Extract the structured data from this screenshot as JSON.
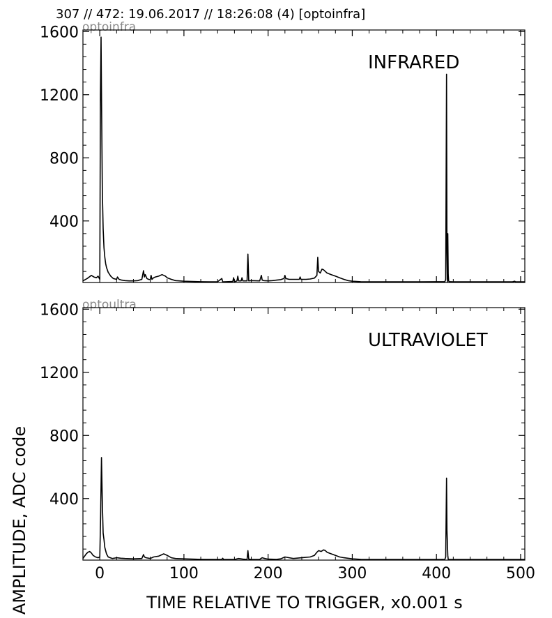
{
  "header": {
    "title": "307 // 472:   19.06.2017 // 18:26:08 (4)  [optoinfra]"
  },
  "chart_data": [
    {
      "type": "line",
      "channel_label": "optoinfra",
      "panel_label": "INFRARED",
      "xlim": [
        -20,
        505
      ],
      "ylim": [
        10,
        1610
      ],
      "yticks": [
        400,
        800,
        1200,
        1600
      ],
      "ytick_labels": [
        "400",
        "800",
        "1200",
        "1600"
      ],
      "show_xtick_labels": false,
      "series": [
        {
          "x": [
            -20,
            -15,
            -10,
            -7,
            -4,
            -2,
            0,
            0.8,
            1.5,
            2.2,
            3,
            4,
            5,
            6,
            7,
            8,
            10,
            13,
            16,
            20,
            21,
            23,
            26,
            30,
            35,
            40,
            45,
            50,
            52,
            53,
            54,
            56,
            58,
            60,
            61,
            62,
            64,
            66,
            70,
            74,
            76,
            78,
            80,
            85,
            90,
            100,
            110,
            120,
            130,
            140,
            145,
            146,
            147,
            150,
            158,
            159,
            160,
            163,
            164,
            165,
            168,
            169,
            170,
            175,
            176,
            177,
            180,
            190,
            192,
            193,
            195,
            200,
            205,
            210,
            215,
            219,
            220,
            221,
            225,
            230,
            237,
            238,
            239,
            245,
            250,
            255,
            258,
            259,
            260,
            262,
            264,
            266,
            268,
            270,
            275,
            280,
            285,
            290,
            295,
            300,
            310,
            320,
            340,
            360,
            380,
            400,
            405,
            410,
            411,
            412,
            412.5,
            413,
            413.5,
            414,
            414.5,
            415,
            417,
            420,
            440,
            460,
            480,
            490,
            493,
            494,
            495,
            500,
            505
          ],
          "y": [
            20,
            35,
            55,
            45,
            40,
            50,
            30,
            1200,
            1565,
            1100,
            600,
            350,
            230,
            170,
            130,
            105,
            75,
            50,
            35,
            30,
            45,
            30,
            25,
            22,
            20,
            20,
            22,
            30,
            85,
            45,
            60,
            35,
            30,
            28,
            55,
            30,
            40,
            45,
            50,
            60,
            55,
            50,
            40,
            30,
            22,
            18,
            16,
            15,
            14,
            15,
            35,
            15,
            14,
            15,
            16,
            40,
            15,
            20,
            50,
            20,
            20,
            40,
            20,
            20,
            190,
            20,
            22,
            20,
            55,
            25,
            22,
            20,
            22,
            25,
            28,
            35,
            55,
            35,
            30,
            30,
            30,
            45,
            30,
            30,
            32,
            38,
            55,
            170,
            80,
            70,
            95,
            90,
            80,
            70,
            60,
            50,
            40,
            30,
            22,
            18,
            15,
            14,
            14,
            14,
            14,
            15,
            15,
            15,
            30,
            1330,
            200,
            15,
            320,
            60,
            20,
            15,
            15,
            14,
            14,
            14,
            14,
            14,
            18,
            14,
            14,
            14,
            14
          ]
        }
      ]
    },
    {
      "type": "line",
      "channel_label": "optoultra",
      "panel_label": "ULTRAVIOLET",
      "xlim": [
        -20,
        505
      ],
      "ylim": [
        10,
        1610
      ],
      "yticks": [
        400,
        800,
        1200,
        1600
      ],
      "ytick_labels": [
        "400",
        "800",
        "1200",
        "1600"
      ],
      "xticks": [
        0,
        100,
        200,
        300,
        400,
        500
      ],
      "xtick_labels": [
        "0",
        "100",
        "200",
        "300",
        "400",
        "500"
      ],
      "xlabel": "TIME RELATIVE TO TRIGGER,   x0.001 s",
      "ylabel": "AMPLITUDE,  ADC code",
      "series": [
        {
          "x": [
            -20,
            -16,
            -14,
            -12,
            -10,
            -8,
            -5,
            -2,
            0,
            1,
            2,
            3,
            4,
            5,
            6,
            8,
            10,
            15,
            20,
            25,
            30,
            40,
            50,
            52,
            53,
            55,
            60,
            64,
            70,
            74,
            76,
            78,
            80,
            85,
            90,
            100,
            110,
            120,
            145,
            146,
            147,
            160,
            165,
            170,
            175,
            176,
            177,
            180,
            190,
            193,
            196,
            200,
            210,
            215,
            220,
            225,
            230,
            240,
            250,
            255,
            258,
            260,
            263,
            266,
            268,
            270,
            275,
            280,
            285,
            290,
            300,
            310,
            320,
            340,
            360,
            380,
            400,
            405,
            410,
            411,
            412,
            412.5,
            413,
            413.5,
            414,
            415,
            417,
            420,
            450,
            480,
            500,
            505
          ],
          "y": [
            20,
            50,
            60,
            65,
            55,
            40,
            30,
            25,
            30,
            300,
            660,
            380,
            180,
            140,
            90,
            50,
            30,
            20,
            25,
            22,
            20,
            18,
            20,
            45,
            30,
            25,
            20,
            30,
            35,
            45,
            50,
            45,
            40,
            25,
            20,
            18,
            16,
            15,
            14,
            22,
            14,
            14,
            20,
            16,
            14,
            70,
            16,
            14,
            15,
            25,
            20,
            16,
            15,
            18,
            30,
            25,
            20,
            25,
            30,
            40,
            60,
            70,
            65,
            75,
            70,
            60,
            50,
            40,
            30,
            25,
            18,
            15,
            14,
            14,
            14,
            14,
            14,
            14,
            15,
            30,
            530,
            200,
            120,
            40,
            15,
            14,
            14,
            14,
            14,
            14,
            14,
            14
          ]
        }
      ]
    }
  ]
}
